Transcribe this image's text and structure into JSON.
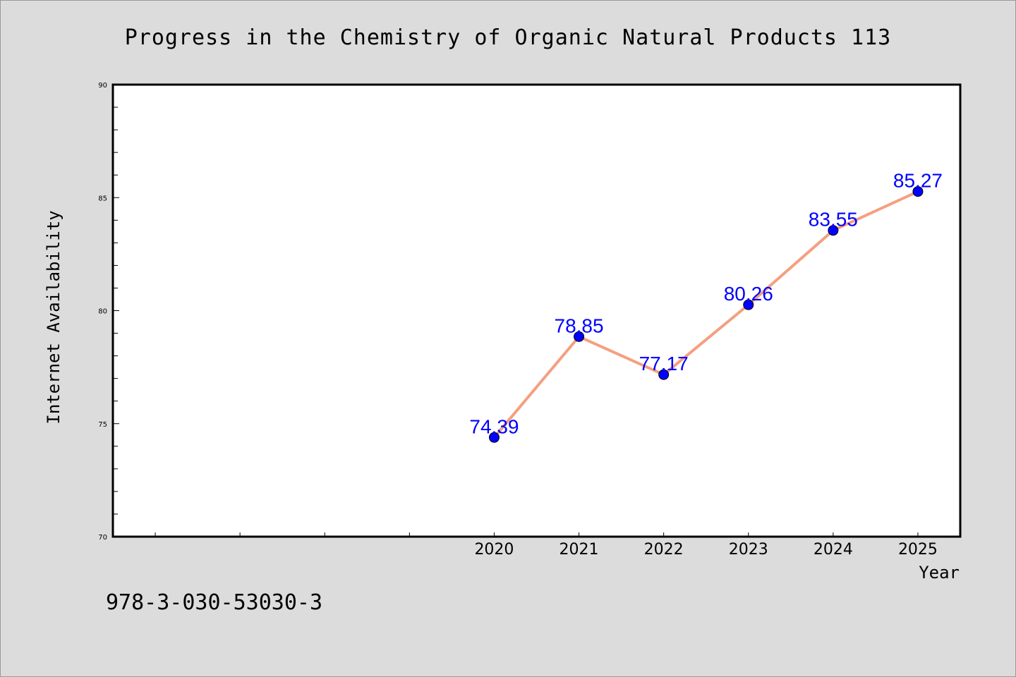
{
  "footer": {
    "isbn": "978-3-030-53030-3"
  },
  "colors": {
    "line": "#f4a080",
    "marker": "#0000ff",
    "data_label": "#0000ff",
    "background": "#dcdcdc",
    "plot_background": "#ffffff"
  },
  "chart_data": {
    "type": "line",
    "title": "Progress in the Chemistry of Organic Natural Products 113",
    "xlabel": "Year",
    "ylabel": "Internet Availability",
    "x": [
      2020,
      2021,
      2022,
      2023,
      2024,
      2025
    ],
    "x_tick_labels": [
      "2020",
      "2021",
      "2022",
      "2023",
      "2024",
      "2025"
    ],
    "xlim": [
      2015.5,
      2025.5
    ],
    "ylim": [
      70,
      90
    ],
    "y_ticks": [
      70,
      75,
      80,
      85,
      90
    ],
    "y_tick_labels": [
      "70",
      "75",
      "80",
      "85",
      "90"
    ],
    "series": [
      {
        "values": [
          74.39,
          78.85,
          77.17,
          80.26,
          83.55,
          85.27
        ],
        "labels": [
          "74.39",
          "78.85",
          "77.17",
          "80.26",
          "83.55",
          "85.27"
        ]
      }
    ],
    "grid": false,
    "legend": "none"
  }
}
